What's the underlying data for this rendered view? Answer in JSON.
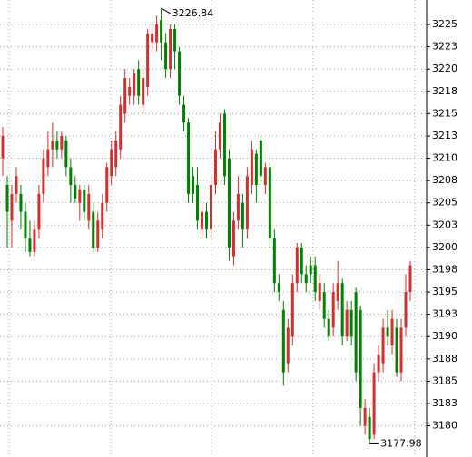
{
  "chart_data": {
    "type": "candlestick",
    "up_color": "#d03030",
    "down_color": "#008000",
    "grid": true,
    "ylim": [
      3176.5,
      3227.75
    ],
    "yticks": [
      3180,
      {
        "value": 3182.5,
        "label": "3183"
      },
      3185,
      {
        "value": 3187.5,
        "label": "3188"
      },
      3190,
      {
        "value": 3192.5,
        "label": "3193"
      },
      3195,
      {
        "value": 3197.5,
        "label": "3198"
      },
      3200,
      {
        "value": 3202.5,
        "label": "3203"
      },
      3205,
      {
        "value": 3207.5,
        "label": "3208"
      },
      3210,
      {
        "value": 3212.5,
        "label": "3213"
      },
      3215,
      {
        "value": 3217.5,
        "label": "3218"
      },
      3220,
      {
        "value": 3222.5,
        "label": "3223"
      },
      3225
    ],
    "annotations": [
      3226.84,
      3177.98
    ],
    "open": [
      3210,
      3207,
      3203,
      3206,
      3206,
      3204,
      3201,
      3199.5,
      3202,
      3206,
      3209,
      3211,
      3212,
      3211,
      3212,
      3209,
      3207,
      3205,
      3206.5,
      3203,
      3204,
      3200,
      3202,
      3205,
      3208,
      3209,
      3211,
      3215,
      3217,
      3217,
      3220,
      3216,
      3218,
      3223,
      3223,
      3225.5,
      3223,
      3220,
      3224.5,
      3222,
      3216,
      3214,
      3208,
      3207,
      3202,
      3204,
      3202,
      3207,
      3211,
      3215,
      3210,
      3199,
      3203,
      3205,
      3202,
      3207,
      3210.5,
      3212,
      3207,
      3209,
      3201,
      3196,
      3193,
      3187,
      3190,
      3196,
      3200,
      3197,
      3198,
      3198,
      3194,
      3195,
      3192,
      3191,
      3194,
      3196,
      3190,
      3193,
      3195,
      3193,
      3180,
      3181,
      3179,
      3186,
      3187,
      3191,
      3189,
      3191,
      3186,
      3191,
      3195
    ],
    "high": [
      3213.5,
      3208,
      3207,
      3209,
      3207,
      3205,
      3203,
      3203,
      3207,
      3211,
      3213,
      3214,
      3213,
      3213,
      3212.5,
      3210,
      3208,
      3207,
      3207,
      3207,
      3205,
      3204,
      3206,
      3209.5,
      3212,
      3213,
      3217,
      3220,
      3219,
      3220,
      3221,
      3220,
      3224.5,
      3225,
      3226,
      3226.84,
      3224,
      3225,
      3225,
      3222.5,
      3217,
      3214.5,
      3209,
      3209,
      3205,
      3205,
      3208,
      3213,
      3215,
      3215.5,
      3211,
      3204,
      3208,
      3206,
      3209,
      3212,
      3211,
      3212.5,
      3209.5,
      3209.5,
      3202,
      3197,
      3194,
      3192,
      3197,
      3200.5,
      3200.5,
      3198,
      3199,
      3199,
      3197,
      3196,
      3193,
      3196,
      3198.5,
      3196.5,
      3194,
      3194,
      3195.5,
      3193.5,
      3183,
      3182,
      3187,
      3189,
      3192,
      3193,
      3193,
      3192,
      3192,
      3197,
      3198.5
    ],
    "low": [
      3208,
      3200,
      3200,
      3205,
      3202,
      3199.5,
      3199,
      3199,
      3201,
      3205,
      3208,
      3209,
      3210,
      3210,
      3208,
      3205,
      3205,
      3203,
      3203,
      3202,
      3199.5,
      3199.5,
      3201,
      3204,
      3207,
      3208,
      3210,
      3214,
      3216,
      3216,
      3216,
      3215,
      3217,
      3222,
      3222,
      3221,
      3219,
      3219,
      3220,
      3216,
      3213,
      3205,
      3205,
      3202,
      3201,
      3201,
      3201,
      3206,
      3210,
      3207,
      3198.5,
      3198,
      3202,
      3200,
      3201,
      3206,
      3205,
      3207,
      3206,
      3200,
      3195,
      3194,
      3184.5,
      3186,
      3189,
      3195,
      3196,
      3195,
      3196,
      3194,
      3193,
      3191,
      3189.5,
      3190,
      3193,
      3189,
      3189.5,
      3189,
      3185,
      3180,
      3179,
      3177.98,
      3178.5,
      3185,
      3186,
      3189,
      3188,
      3185.5,
      3185,
      3190,
      3194
    ],
    "close": [
      3212.5,
      3204,
      3206,
      3208,
      3204,
      3201,
      3199.5,
      3202,
      3206,
      3210,
      3211,
      3212,
      3211,
      3212.5,
      3209,
      3207,
      3205.5,
      3206.5,
      3204,
      3206,
      3200,
      3203,
      3205,
      3209,
      3211,
      3212,
      3216,
      3219,
      3218,
      3219.5,
      3217,
      3219,
      3224,
      3224,
      3225,
      3223,
      3220,
      3224.5,
      3222,
      3217,
      3214,
      3206,
      3206,
      3203,
      3204,
      3202,
      3207,
      3211,
      3214,
      3208,
      3200,
      3203,
      3206,
      3202,
      3208,
      3211,
      3207,
      3208,
      3209,
      3201,
      3196,
      3195,
      3186,
      3191,
      3196,
      3200,
      3197,
      3196,
      3197,
      3195,
      3196,
      3192,
      3190,
      3195,
      3196,
      3190,
      3193,
      3190,
      3186,
      3182,
      3182,
      3178.5,
      3186,
      3188,
      3191,
      3190,
      3192,
      3186,
      3191,
      3195,
      3198
    ]
  }
}
